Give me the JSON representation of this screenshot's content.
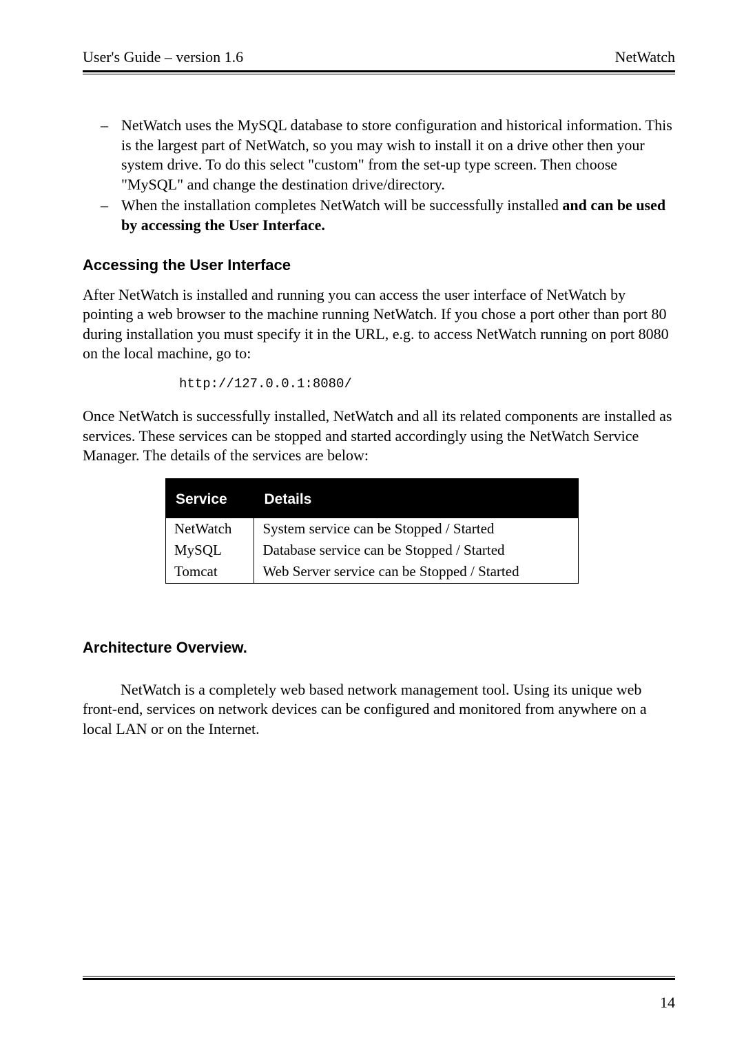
{
  "header": {
    "left": "User's Guide – version 1.6",
    "right": "NetWatch"
  },
  "bullets": {
    "b1_part1": "NetWatch uses the MySQL database to store configuration and historical information.  This is the largest part of NetWatch, so you may wish to install it on a drive other then your system drive.  To do this select \"custom\" from the set-up type screen.  Then choose \"MySQL\" and change the destination drive/directory.",
    "b2_part1": "When the installation completes NetWatch will be successfully installed ",
    "b2_bold": "and can be used by accessing the User Interface."
  },
  "section1": {
    "heading": "Accessing the User Interface",
    "para1": "After NetWatch is installed and running you can access the user interface of NetWatch by pointing a web browser to the machine running NetWatch. If you chose a port other than port 80 during installation you must specify it in the URL, e.g. to access NetWatch running on port 8080 on the local machine, go to:",
    "code": "http://127.0.0.1:8080/",
    "para2": "Once NetWatch is successfully installed, NetWatch and all its related components are installed as services.  These services can be stopped and started accordingly using the NetWatch Service Manager. The details of the services are below:"
  },
  "table": {
    "col1": "Service",
    "col2": "Details",
    "rows": [
      {
        "service": "NetWatch",
        "details": "System service can be Stopped / Started"
      },
      {
        "service": "MySQL",
        "details": "Database service can be Stopped / Started"
      },
      {
        "service": "Tomcat",
        "details": "Web Server service can be Stopped / Started"
      }
    ]
  },
  "section2": {
    "heading": "Architecture Overview.",
    "para": "NetWatch is a completely web based network management tool. Using its unique web front-end, services on network devices can be configured and monitored from anywhere on a local LAN or on the Internet."
  },
  "footer": {
    "page": "14"
  }
}
